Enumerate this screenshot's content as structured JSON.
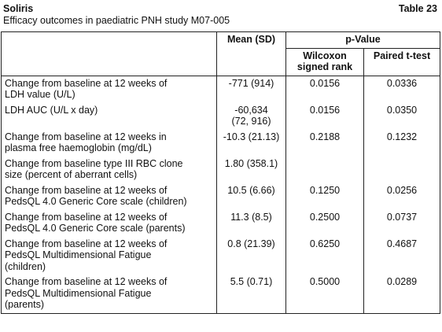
{
  "header": {
    "product": "Soliris",
    "table_label": "Table 23",
    "caption": "Efficacy outcomes in paediatric PNH study M07-005"
  },
  "table": {
    "columns": {
      "mean": "Mean (SD)",
      "p_value": "p-Value",
      "wilcoxon": [
        "Wilcoxon",
        "signed rank"
      ],
      "paired": "Paired t-test"
    },
    "rows": [
      {
        "label": [
          "Change from baseline at 12 weeks of",
          "LDH value (U/L)"
        ],
        "mean": [
          "-771 (914)"
        ],
        "wilcoxon": "0.0156",
        "paired": "0.0336"
      },
      {
        "label": [
          "LDH AUC (U/L x day)"
        ],
        "mean": [
          "-60,634",
          "(72, 916)"
        ],
        "wilcoxon": "0.0156",
        "paired": "0.0350"
      },
      {
        "label": [
          "Change from baseline at 12 weeks in",
          "plasma free haemoglobin (mg/dL)"
        ],
        "mean": [
          "-10.3 (21.13)"
        ],
        "wilcoxon": "0.2188",
        "paired": "0.1232"
      },
      {
        "label": [
          "Change from baseline type III RBC clone",
          "size (percent of aberrant cells)"
        ],
        "mean": [
          "1.80 (358.1)"
        ]
      },
      {
        "label": [
          "Change from baseline at 12 weeks of",
          "PedsQL 4.0 Generic Core scale (children)"
        ],
        "mean": [
          "10.5 (6.66)"
        ],
        "wilcoxon": "0.1250",
        "paired": "0.0256"
      },
      {
        "label": [
          "Change from baseline at 12 weeks of",
          "PedsQL 4.0 Generic Core scale (parents)"
        ],
        "mean": [
          "11.3 (8.5)"
        ],
        "wilcoxon": "0.2500",
        "paired": "0.0737"
      },
      {
        "label": [
          "Change from baseline at 12 weeks of",
          "PedsQL Multidimensional Fatigue",
          "(children)"
        ],
        "mean": [
          "0.8 (21.39)"
        ],
        "wilcoxon": "0.6250",
        "paired": "0.4687"
      },
      {
        "label": [
          "Change from baseline at 12 weeks of",
          "PedsQL Multidimensional Fatigue",
          "(parents)"
        ],
        "mean": [
          "5.5 (0.71)"
        ],
        "wilcoxon": "0.5000",
        "paired": "0.0289"
      }
    ]
  }
}
